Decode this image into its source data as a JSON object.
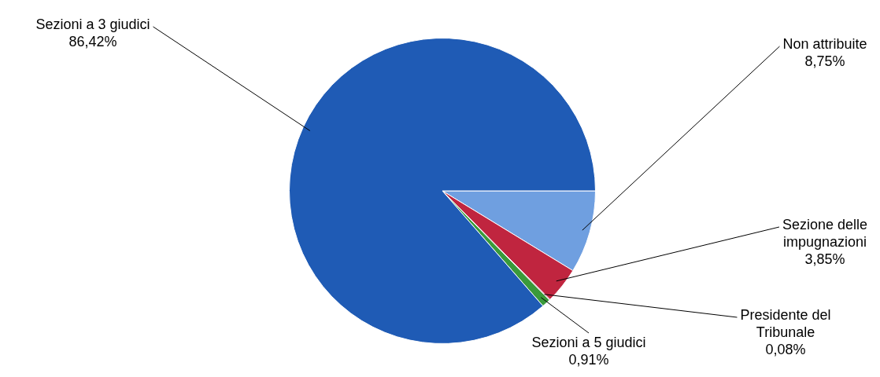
{
  "chart_data": {
    "type": "pie",
    "categories": [
      "Non attribuite",
      "Sezione delle impugnazioni",
      "Presidente del Tribunale",
      "Sezioni a 5 giudici",
      "Sezioni a 3 giudici"
    ],
    "values": [
      8.75,
      3.85,
      0.08,
      0.91,
      86.42
    ],
    "colors": [
      "#6f9fe0",
      "#c0253f",
      "#6a1020",
      "#3a9a3a",
      "#1f5bb5"
    ],
    "value_labels": [
      "8,75%",
      "3,85%",
      "0,08%",
      "0,91%",
      "86,42%"
    ],
    "legend": false
  }
}
